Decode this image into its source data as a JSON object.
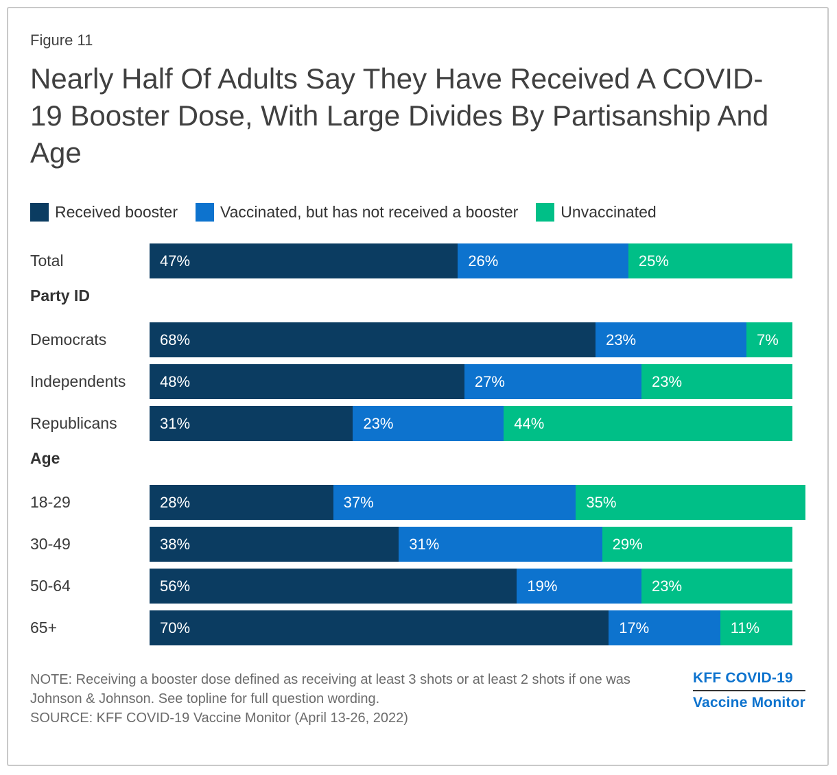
{
  "figure_label": "Figure 11",
  "title": "Nearly Half Of Adults Say They Have Received A COVID-19 Booster Dose, With Large Divides By Partisanship And Age",
  "legend": [
    {
      "label": "Received booster",
      "color": "#0b3c61"
    },
    {
      "label": "Vaccinated, but has not received a booster",
      "color": "#0d73ce"
    },
    {
      "label": "Unvaccinated",
      "color": "#00bf87"
    }
  ],
  "chart_data": {
    "type": "bar",
    "orientation": "horizontal",
    "stacked": true,
    "unit": "%",
    "xlim": [
      0,
      100
    ],
    "grid": false,
    "legend_position": "top",
    "series_names": [
      "Received booster",
      "Vaccinated, but has not received a booster",
      "Unvaccinated"
    ],
    "groups": [
      {
        "header": "",
        "rows": [
          {
            "label": "Total",
            "values": [
              47,
              26,
              25
            ]
          }
        ]
      },
      {
        "header": "Party ID",
        "rows": [
          {
            "label": "Democrats",
            "values": [
              68,
              23,
              7
            ]
          },
          {
            "label": "Independents",
            "values": [
              48,
              27,
              23
            ]
          },
          {
            "label": "Republicans",
            "values": [
              31,
              23,
              44
            ]
          }
        ]
      },
      {
        "header": "Age",
        "rows": [
          {
            "label": "18-29",
            "values": [
              28,
              37,
              35
            ]
          },
          {
            "label": "30-49",
            "values": [
              38,
              31,
              29
            ]
          },
          {
            "label": "50-64",
            "values": [
              56,
              19,
              23
            ]
          },
          {
            "label": "65+",
            "values": [
              70,
              17,
              11
            ]
          }
        ]
      }
    ]
  },
  "note": "NOTE: Receiving a booster dose defined as receiving at least 3 shots or at least 2 shots if one was Johnson & Johnson. See topline for full question wording.",
  "source": "SOURCE: KFF COVID-19 Vaccine Monitor (April 13-26, 2022)",
  "logo": {
    "line1": "KFF COVID-19",
    "line2": "Vaccine Monitor"
  },
  "colors": {
    "navy": "#0b3c61",
    "blue": "#0d73ce",
    "green": "#00bf87",
    "title_text": "#404040",
    "label_text": "#3a3a3a",
    "note_text": "#6b6b6b",
    "logo_blue": "#0d73ce",
    "card_border": "#c9c9c9",
    "value_label_text": "#ffffff"
  }
}
